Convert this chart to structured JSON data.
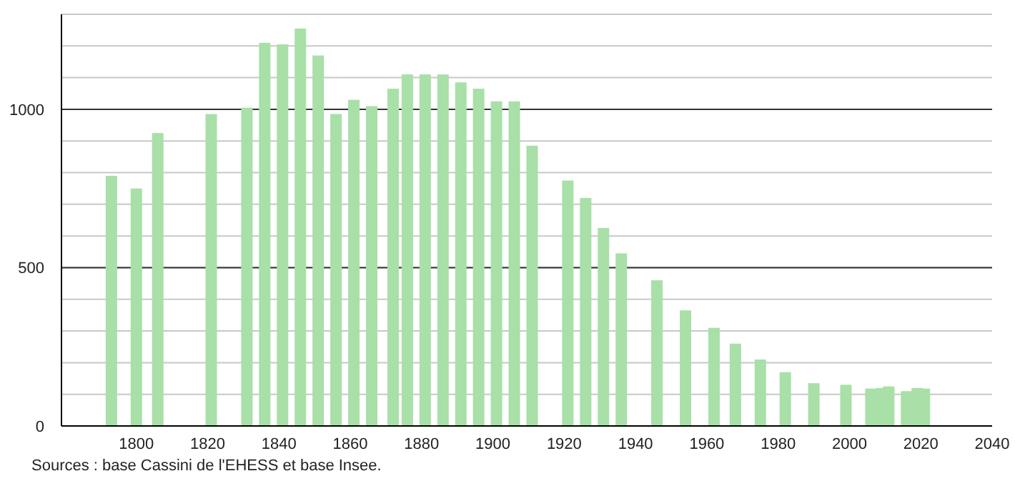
{
  "chart_data": {
    "type": "bar",
    "x": [
      1793,
      1800,
      1806,
      1821,
      1831,
      1836,
      1841,
      1846,
      1851,
      1856,
      1861,
      1866,
      1872,
      1876,
      1881,
      1886,
      1891,
      1896,
      1901,
      1906,
      1911,
      1921,
      1926,
      1931,
      1936,
      1946,
      1954,
      1962,
      1968,
      1975,
      1982,
      1990,
      1999,
      2006,
      2009,
      2011,
      2016,
      2019,
      2021
    ],
    "values": [
      790,
      750,
      925,
      985,
      1005,
      1210,
      1205,
      1255,
      1170,
      985,
      1030,
      1010,
      1065,
      1110,
      1110,
      1110,
      1085,
      1065,
      1025,
      1025,
      885,
      775,
      720,
      625,
      545,
      460,
      365,
      310,
      260,
      210,
      170,
      135,
      130,
      118,
      120,
      125,
      110,
      120,
      118
    ],
    "color": "#a8e0a8",
    "xlim": [
      1779,
      2040
    ],
    "xticks": [
      1800,
      1820,
      1840,
      1860,
      1880,
      1900,
      1920,
      1940,
      1960,
      1980,
      2000,
      2020,
      2040
    ],
    "ylim": [
      0,
      1300
    ],
    "yticks": [
      0,
      {
        "value": 100,
        "label": null
      },
      {
        "value": 200,
        "label": null
      },
      {
        "value": 300,
        "label": null
      },
      {
        "value": 400,
        "label": null
      },
      500,
      {
        "value": 600,
        "label": null
      },
      {
        "value": 700,
        "label": null
      },
      {
        "value": 800,
        "label": null
      },
      {
        "value": 900,
        "label": null
      },
      1000,
      {
        "value": 1100,
        "label": null
      },
      {
        "value": 1200,
        "label": null
      },
      {
        "value": 1300,
        "label": null
      }
    ],
    "grid": "y",
    "annotations": [
      "Sources : base Cassini de l'EHESS et base Insee."
    ]
  }
}
